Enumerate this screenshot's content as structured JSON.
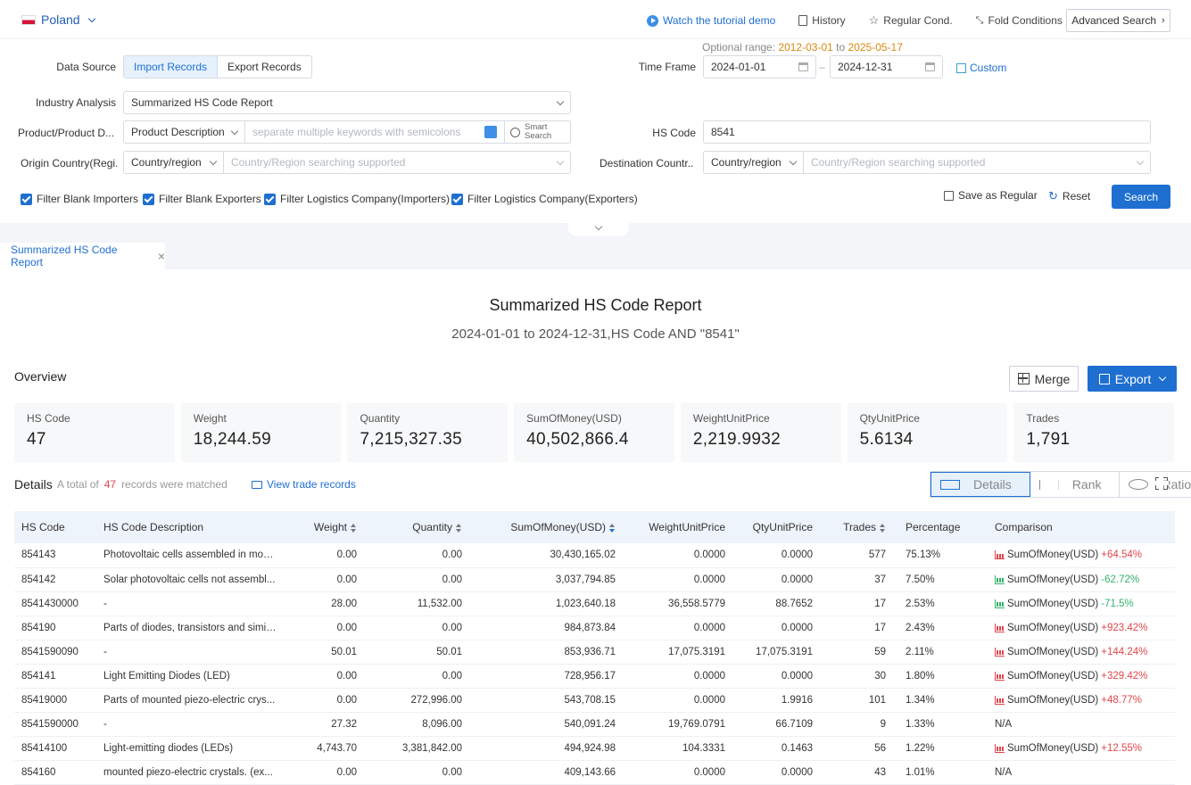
{
  "top": {
    "country": "Poland",
    "tutorial": "Watch the tutorial demo",
    "history": "History",
    "regular": "Regular Cond.",
    "fold": "Fold Conditions",
    "advanced": "Advanced Search"
  },
  "form": {
    "optional_range_label": "Optional range:",
    "range_start": "2012-03-01",
    "range_to": "to",
    "range_end": "2025-05-17",
    "data_source_label": "Data Source",
    "import_label": "Import Records",
    "export_label": "Export Records",
    "time_frame_label": "Time Frame",
    "date_from": "2024-01-01",
    "date_to": "2024-12-31",
    "custom_label": "Custom",
    "industry_label": "Industry Analysis",
    "industry_value": "Summarized HS Code Report",
    "product_label": "Product/Product D...",
    "product_type": "Product Description",
    "keyword_placeholder": "separate multiple keywords with semicolons",
    "smart_search_1": "Smart",
    "smart_search_2": "Search",
    "hs_label": "HS Code",
    "hs_value": "8541",
    "origin_label": "Origin Country(Regi...",
    "origin_type": "Country/region",
    "origin_placeholder": "Country/Region searching supported",
    "dest_label": "Destination Countr...",
    "dest_type": "Country/region",
    "dest_placeholder": "Country/Region searching supported",
    "filters": [
      "Filter Blank Importers",
      "Filter Blank Exporters",
      "Filter Logistics Company(Importers)",
      "Filter Logistics Company(Exporters)"
    ],
    "save_regular": "Save as Regular",
    "reset": "Reset",
    "search": "Search"
  },
  "tab": {
    "label": "Summarized HS Code Report"
  },
  "report": {
    "title": "Summarized HS Code Report",
    "subtitle": "2024-01-01 to 2024-12-31,HS Code AND \"8541\"",
    "overview": "Overview",
    "merge": "Merge",
    "export": "Export",
    "cards": [
      {
        "label": "HS Code",
        "value": "47"
      },
      {
        "label": "Weight",
        "value": "18,244.59"
      },
      {
        "label": "Quantity",
        "value": "7,215,327.35"
      },
      {
        "label": "SumOfMoney(USD)",
        "value": "40,502,866.4"
      },
      {
        "label": "WeightUnitPrice",
        "value": "2,219.9932"
      },
      {
        "label": "QtyUnitPrice",
        "value": "5.6134"
      },
      {
        "label": "Trades",
        "value": "1,791"
      }
    ],
    "details": "Details",
    "total_prefix": "A total of",
    "total_count": "47",
    "total_suffix": "records were matched",
    "view_trade": "View trade records",
    "view_details": "Details",
    "view_rank": "Rank",
    "view_ratio": "Ratio"
  },
  "table": {
    "headers": [
      "HS Code",
      "HS Code Description",
      "Weight",
      "Quantity",
      "SumOfMoney(USD)",
      "WeightUnitPrice",
      "QtyUnitPrice",
      "Trades",
      "Percentage",
      "Comparison"
    ],
    "rows": [
      {
        "code": "854143",
        "desc": "Photovoltaic cells assembled in mod...",
        "weight": "0.00",
        "qty": "0.00",
        "money": "30,430,165.02",
        "wup": "0.0000",
        "qup": "0.0000",
        "trades": "577",
        "pct": "75.13%",
        "cmp_label": "SumOfMoney(USD)",
        "cmp_change": "+64.54%",
        "dir": "up"
      },
      {
        "code": "854142",
        "desc": "Solar photovoltaic cells not assembl...",
        "weight": "0.00",
        "qty": "0.00",
        "money": "3,037,794.85",
        "wup": "0.0000",
        "qup": "0.0000",
        "trades": "37",
        "pct": "7.50%",
        "cmp_label": "SumOfMoney(USD)",
        "cmp_change": "-62.72%",
        "dir": "dn"
      },
      {
        "code": "8541430000",
        "desc": "-",
        "weight": "28.00",
        "qty": "11,532.00",
        "money": "1,023,640.18",
        "wup": "36,558.5779",
        "qup": "88.7652",
        "trades": "17",
        "pct": "2.53%",
        "cmp_label": "SumOfMoney(USD)",
        "cmp_change": "-71.5%",
        "dir": "dn"
      },
      {
        "code": "854190",
        "desc": "Parts of diodes, transistors and simil...",
        "weight": "0.00",
        "qty": "0.00",
        "money": "984,873.84",
        "wup": "0.0000",
        "qup": "0.0000",
        "trades": "17",
        "pct": "2.43%",
        "cmp_label": "SumOfMoney(USD)",
        "cmp_change": "+923.42%",
        "dir": "up"
      },
      {
        "code": "8541590090",
        "desc": "-",
        "weight": "50.01",
        "qty": "50.01",
        "money": "853,936.71",
        "wup": "17,075.3191",
        "qup": "17,075.3191",
        "trades": "59",
        "pct": "2.11%",
        "cmp_label": "SumOfMoney(USD)",
        "cmp_change": "+144.24%",
        "dir": "up"
      },
      {
        "code": "854141",
        "desc": "Light Emitting Diodes (LED)",
        "weight": "0.00",
        "qty": "0.00",
        "money": "728,956.17",
        "wup": "0.0000",
        "qup": "0.0000",
        "trades": "30",
        "pct": "1.80%",
        "cmp_label": "SumOfMoney(USD)",
        "cmp_change": "+329.42%",
        "dir": "up"
      },
      {
        "code": "85419000",
        "desc": "Parts of mounted piezo-electric crys...",
        "weight": "0.00",
        "qty": "272,996.00",
        "money": "543,708.15",
        "wup": "0.0000",
        "qup": "1.9916",
        "trades": "101",
        "pct": "1.34%",
        "cmp_label": "SumOfMoney(USD)",
        "cmp_change": "+48.77%",
        "dir": "up"
      },
      {
        "code": "8541590000",
        "desc": "-",
        "weight": "27.32",
        "qty": "8,096.00",
        "money": "540,091.24",
        "wup": "19,769.0791",
        "qup": "66.7109",
        "trades": "9",
        "pct": "1.33%",
        "cmp_label": "N/A",
        "cmp_change": "",
        "dir": "none"
      },
      {
        "code": "85414100",
        "desc": "Light-emitting diodes (LEDs)",
        "weight": "4,743.70",
        "qty": "3,381,842.00",
        "money": "494,924.98",
        "wup": "104.3331",
        "qup": "0.1463",
        "trades": "56",
        "pct": "1.22%",
        "cmp_label": "SumOfMoney(USD)",
        "cmp_change": "+12.55%",
        "dir": "up"
      },
      {
        "code": "854160",
        "desc": "mounted piezo-electric crystals. (ex...",
        "weight": "0.00",
        "qty": "0.00",
        "money": "409,143.66",
        "wup": "0.0000",
        "qup": "0.0000",
        "trades": "43",
        "pct": "1.01%",
        "cmp_label": "N/A",
        "cmp_change": "",
        "dir": "none"
      }
    ]
  },
  "colors": {
    "accent": "#1f6fd1",
    "up": "#e1464b",
    "down": "#33b36b",
    "orange": "#d8890f"
  }
}
